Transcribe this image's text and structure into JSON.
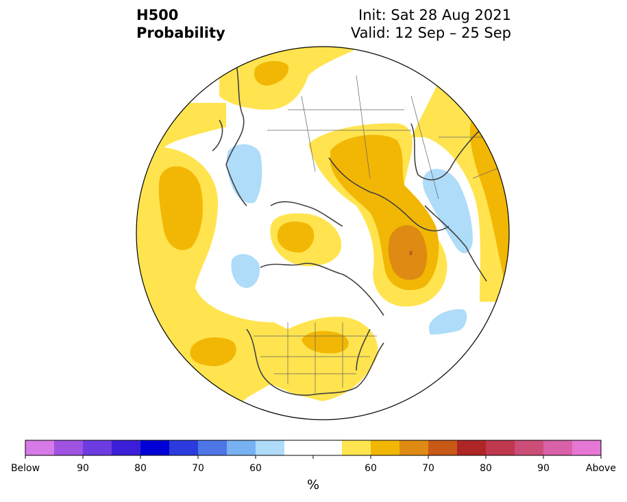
{
  "header": {
    "title_line1": "H500",
    "title_line2": "Probability",
    "init_text": "Init: Sat 28 Aug 2021",
    "valid_text": "Valid: 12 Sep – 25 Sep"
  },
  "colorbar": {
    "unit": "%",
    "colors": [
      "#d57ae7",
      "#a052e1",
      "#6c3ce0",
      "#3b1fd8",
      "#0000d6",
      "#2b3bde",
      "#4e76e6",
      "#78b1f2",
      "#aedcf9",
      "#ffffff",
      "#ffffff",
      "#ffe44f",
      "#f2b705",
      "#df8a12",
      "#c85916",
      "#b02525",
      "#c0384e",
      "#cc4d78",
      "#d861a8",
      "#e677d4"
    ],
    "tick_labels": [
      "Below",
      "90",
      "80",
      "70",
      "60",
      "60",
      "70",
      "80",
      "90",
      "Above"
    ]
  },
  "map": {
    "projection": "north-polar-stereographic",
    "legend_colors": {
      "above_50_60": "#ffe44f",
      "above_60_65": "#f2b705",
      "above_65_70": "#df8a12",
      "above_70_75": "#c85916",
      "below_55_60": "#aedcf9"
    }
  }
}
